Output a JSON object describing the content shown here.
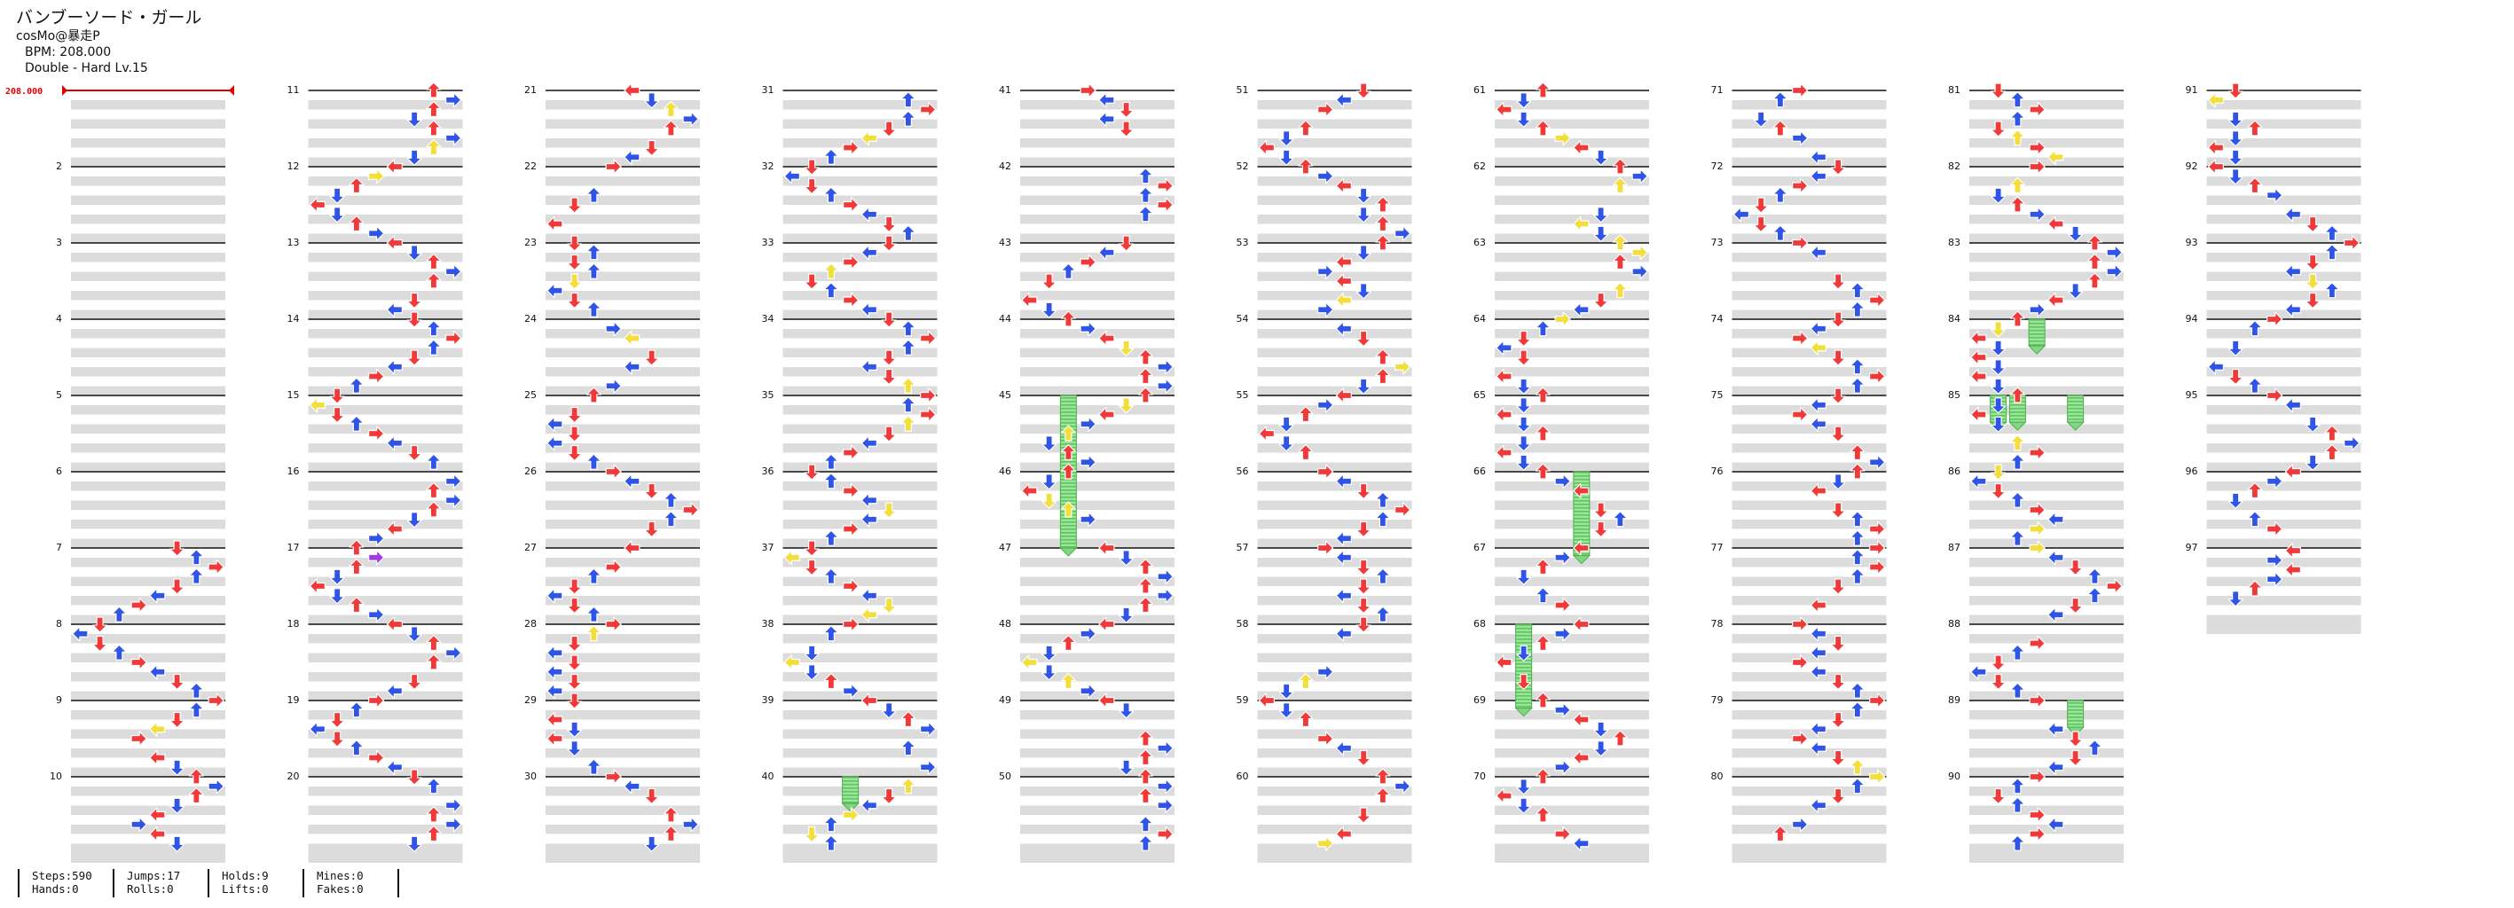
{
  "song": {
    "title": "バンブーソード・ガール",
    "artist": "cosMo@暴走P",
    "bpm_label": "BPM: 208.000",
    "difficulty_label": "Double - Hard  Lv.15"
  },
  "bpm_marker": "208.000",
  "colors": {
    "red_note": "#f03a3a",
    "blue_note": "#2f54e6",
    "yellow_note": "#f2df3c",
    "purple_note": "#a03be0",
    "hold_green": "#8fe08f",
    "stripe_gray": "#dcdcdc",
    "beat_line": "#111111",
    "bpm_red": "#e00000"
  },
  "chart_data": {
    "type": "step-chart",
    "style": "Double",
    "total_measures": 97,
    "measures_per_column": 10,
    "lanes": 8,
    "measure_labels": [
      "2",
      "3",
      "4",
      "5",
      "6",
      "7",
      "8",
      "9",
      "10",
      "11",
      "12",
      "13",
      "14",
      "15",
      "16",
      "17",
      "18",
      "19",
      "20",
      "21",
      "22",
      "23",
      "24",
      "25",
      "26",
      "27",
      "28",
      "29",
      "30",
      "31",
      "32",
      "33",
      "34",
      "35",
      "36",
      "37",
      "38",
      "39",
      "40",
      "41",
      "42",
      "43",
      "44",
      "45",
      "46",
      "47",
      "48",
      "49",
      "50",
      "51",
      "52",
      "53",
      "54",
      "55",
      "56",
      "57",
      "58",
      "59",
      "60",
      "61",
      "62",
      "63",
      "64",
      "65",
      "66",
      "67",
      "68",
      "69",
      "70",
      "71",
      "72",
      "73",
      "74",
      "75",
      "76",
      "77",
      "78",
      "79",
      "80",
      "81",
      "82",
      "83",
      "84",
      "85",
      "86",
      "87",
      "88",
      "89",
      "90",
      "91",
      "92",
      "93",
      "94",
      "95",
      "96",
      "97"
    ],
    "holds": [
      {
        "measure": 40,
        "lane": 3
      },
      {
        "measure": 45,
        "lane": 2,
        "length_measures": 2.0
      },
      {
        "measure": 66,
        "lane": 4,
        "length_measures": 1.1
      },
      {
        "measure": 68,
        "lane": 1,
        "length_measures": 1.1
      },
      {
        "measure": 84,
        "lane": 3
      },
      {
        "measure": 85,
        "lane": 1
      },
      {
        "measure": 85,
        "lane": 2
      },
      {
        "measure": 85,
        "lane": 5
      },
      {
        "measure": 89,
        "lane": 5
      }
    ]
  },
  "stats": [
    {
      "top": "Steps:590",
      "bottom": "Hands:0"
    },
    {
      "top": "Jumps:17",
      "bottom": "Rolls:0"
    },
    {
      "top": "Holds:9",
      "bottom": "Lifts:0"
    },
    {
      "top": "Mines:0",
      "bottom": "Fakes:0"
    }
  ]
}
